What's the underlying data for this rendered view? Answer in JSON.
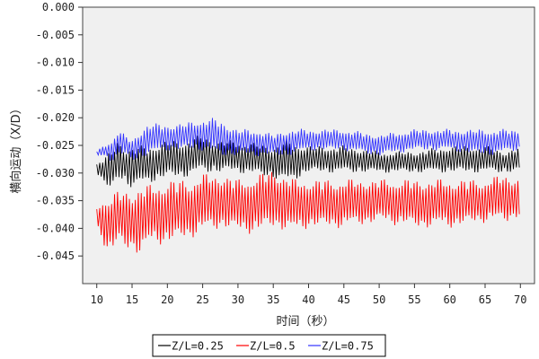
{
  "chart_data": {
    "type": "line",
    "xlabel": "时间（秒）",
    "ylabel": "横向运动（X/D）",
    "xlim": [
      8,
      72
    ],
    "ylim": [
      -0.05,
      0.0
    ],
    "xticks": [
      10,
      15,
      20,
      25,
      30,
      35,
      40,
      45,
      50,
      55,
      60,
      65,
      70
    ],
    "yticks": [
      0.0,
      -0.005,
      -0.01,
      -0.015,
      -0.02,
      -0.025,
      -0.03,
      -0.035,
      -0.04,
      -0.045
    ],
    "ytick_labels": [
      "0.000",
      "-0.005",
      "-0.010",
      "-0.015",
      "-0.020",
      "-0.025",
      "-0.030",
      "-0.035",
      "-0.040",
      "-0.045"
    ],
    "legend_position": "bottom-center",
    "grid": false,
    "plot_background": "#f0f0f0",
    "oscillation_period_s": 0.42,
    "series": [
      {
        "name": "Z/L=0.25",
        "color": "#000000",
        "envelope": {
          "x": [
            10,
            11,
            12,
            13,
            14,
            15,
            17,
            20,
            22,
            25,
            27,
            30,
            35,
            37,
            40,
            45,
            50,
            55,
            60,
            65,
            68,
            70
          ],
          "upper": [
            -0.028,
            -0.027,
            -0.026,
            -0.024,
            -0.025,
            -0.025,
            -0.025,
            -0.024,
            -0.024,
            -0.023,
            -0.024,
            -0.024,
            -0.025,
            -0.024,
            -0.025,
            -0.025,
            -0.026,
            -0.026,
            -0.025,
            -0.025,
            -0.026,
            -0.025
          ],
          "lower": [
            -0.03,
            -0.032,
            -0.034,
            -0.031,
            -0.032,
            -0.033,
            -0.032,
            -0.031,
            -0.031,
            -0.03,
            -0.03,
            -0.03,
            -0.031,
            -0.032,
            -0.03,
            -0.03,
            -0.03,
            -0.03,
            -0.03,
            -0.03,
            -0.03,
            -0.03
          ]
        }
      },
      {
        "name": "Z/L=0.5",
        "color": "#ff0000",
        "envelope": {
          "x": [
            10,
            11,
            12,
            13,
            14,
            15,
            16,
            18,
            20,
            23,
            25,
            28,
            30,
            33,
            35,
            38,
            40,
            43,
            45,
            50,
            55,
            60,
            65,
            68,
            70
          ],
          "upper": [
            -0.036,
            -0.034,
            -0.034,
            -0.033,
            -0.033,
            -0.033,
            -0.032,
            -0.032,
            -0.031,
            -0.031,
            -0.03,
            -0.03,
            -0.031,
            -0.03,
            -0.029,
            -0.031,
            -0.031,
            -0.031,
            -0.031,
            -0.031,
            -0.031,
            -0.031,
            -0.031,
            -0.03,
            -0.031
          ],
          "lower": [
            -0.04,
            -0.043,
            -0.045,
            -0.043,
            -0.044,
            -0.044,
            -0.045,
            -0.043,
            -0.043,
            -0.042,
            -0.041,
            -0.04,
            -0.041,
            -0.041,
            -0.04,
            -0.041,
            -0.04,
            -0.04,
            -0.04,
            -0.039,
            -0.04,
            -0.04,
            -0.039,
            -0.039,
            -0.038
          ]
        }
      },
      {
        "name": "Z/L=0.75",
        "color": "#3333ff",
        "envelope": {
          "x": [
            10,
            11,
            12,
            13,
            14,
            15,
            17,
            20,
            22,
            25,
            27,
            30,
            33,
            35,
            37,
            40,
            45,
            50,
            55,
            60,
            65,
            70
          ],
          "upper": [
            -0.026,
            -0.025,
            -0.024,
            -0.022,
            -0.023,
            -0.024,
            -0.021,
            -0.021,
            -0.021,
            -0.02,
            -0.02,
            -0.022,
            -0.022,
            -0.023,
            -0.022,
            -0.022,
            -0.022,
            -0.023,
            -0.022,
            -0.022,
            -0.022,
            -0.022
          ],
          "lower": [
            -0.027,
            -0.027,
            -0.028,
            -0.027,
            -0.027,
            -0.028,
            -0.027,
            -0.026,
            -0.026,
            -0.026,
            -0.027,
            -0.027,
            -0.027,
            -0.027,
            -0.027,
            -0.026,
            -0.026,
            -0.027,
            -0.026,
            -0.026,
            -0.027,
            -0.026
          ]
        }
      }
    ]
  }
}
